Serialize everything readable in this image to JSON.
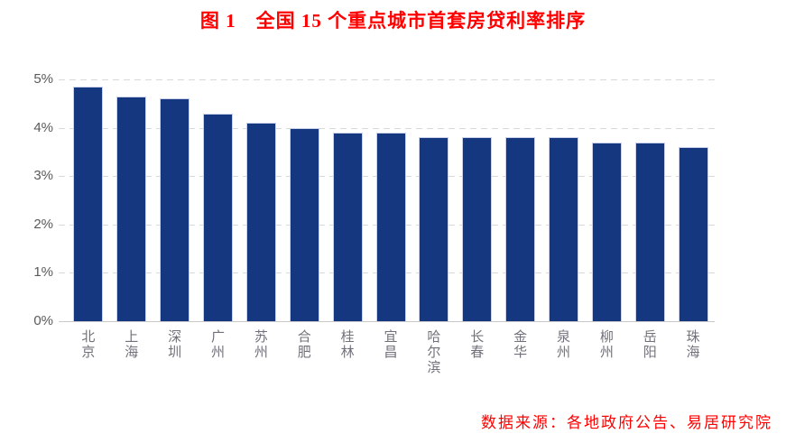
{
  "chart_data": {
    "type": "bar",
    "title": "图 1　全国 15 个重点城市首套房贷利率排序",
    "source_note": "数据来源：各地政府公告、易居研究院",
    "categories": [
      "北京",
      "上海",
      "深圳",
      "广州",
      "苏州",
      "合肥",
      "桂林",
      "宜昌",
      "哈尔滨",
      "长春",
      "金华",
      "泉州",
      "柳州",
      "岳阳",
      "珠海"
    ],
    "values": [
      4.85,
      4.65,
      4.6,
      4.3,
      4.1,
      4.0,
      3.9,
      3.9,
      3.8,
      3.8,
      3.8,
      3.8,
      3.7,
      3.7,
      3.6
    ],
    "unit": "%",
    "xlabel": "",
    "ylabel": "",
    "ylim": [
      0,
      5
    ],
    "y_ticks": [
      "0%",
      "1%",
      "2%",
      "3%",
      "4%",
      "5%"
    ],
    "grid": "horizontal-dashed",
    "legend": "none",
    "colors": {
      "bar": "#153780",
      "bar_border": "#C9D2E8",
      "title_text": "#FF0000",
      "source_text": "#FF0000",
      "axis_line": "#C9C9C9",
      "gridline": "#D9D9D9",
      "y_tick_text": "#595959",
      "x_tick_text": "#71717B"
    }
  }
}
